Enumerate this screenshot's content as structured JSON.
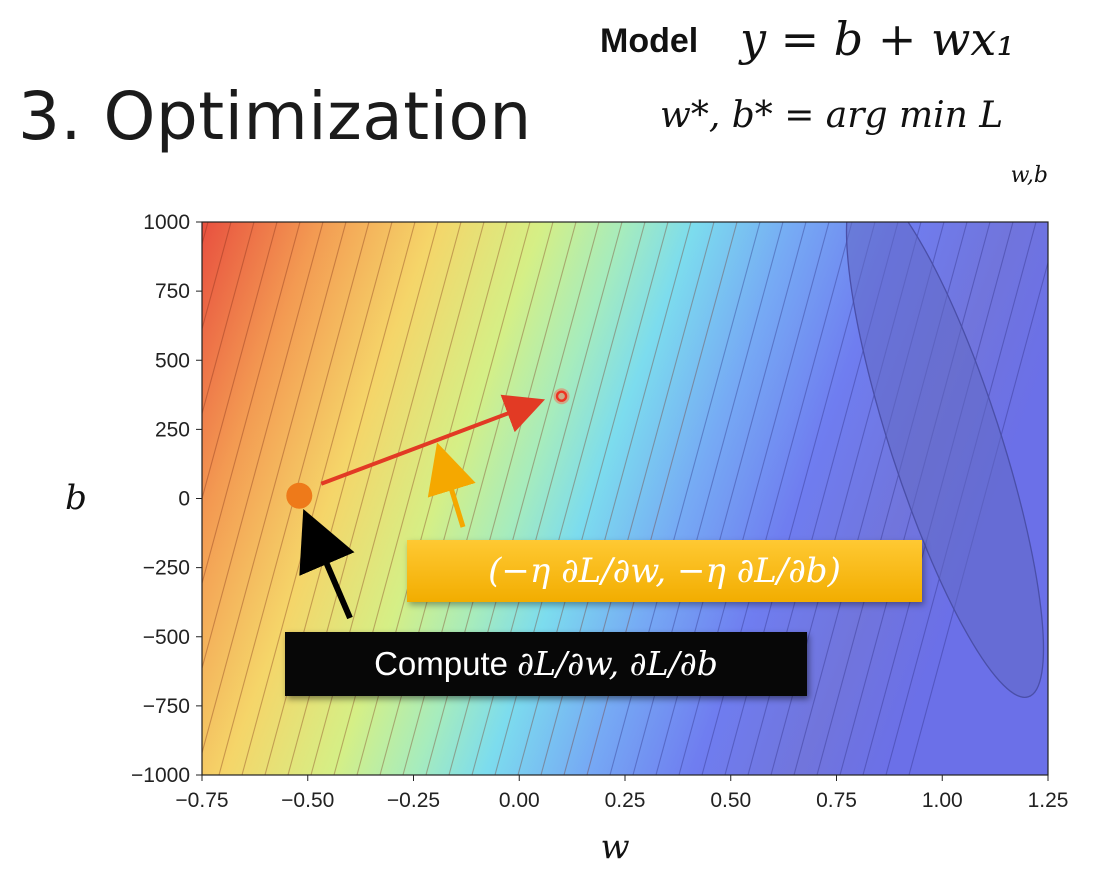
{
  "title": "3. Optimization",
  "model": {
    "label": "Model",
    "equation": "y = b + wx₁",
    "objective": "w*, b* = arg min L",
    "objective_subscript": "w,b"
  },
  "annotations": {
    "compute_prefix": "Compute",
    "compute_math": "∂L/∂w, ∂L/∂b",
    "update_step": "(−η ∂L/∂w, −η ∂L/∂b)"
  },
  "colors": {
    "current_point": "#ee7a1a",
    "next_point": "#ee3322",
    "step_arrow": "#e23a24",
    "gradient_arrow": "#f5a800",
    "pointer_arrow": "#000000"
  },
  "chart_data": {
    "type": "contour",
    "xlabel": "w",
    "ylabel": "b",
    "xlim": [
      -0.75,
      1.25
    ],
    "ylim": [
      -1000,
      1000
    ],
    "xticks": [
      "−0.75",
      "−0.50",
      "−0.25",
      "0.00",
      "0.25",
      "0.50",
      "0.75",
      "1.00",
      "1.25"
    ],
    "yticks": [
      "1000",
      "750",
      "500",
      "250",
      "0",
      "−250",
      "−500",
      "−750",
      "−1000"
    ],
    "colormap": "rainbow (red = high loss, blue = low loss)",
    "points": [
      {
        "name": "current",
        "w": -0.52,
        "b": 10
      },
      {
        "name": "next",
        "w": 0.1,
        "b": 370
      }
    ],
    "minimum_region": {
      "w": 1.02,
      "b": 200
    }
  }
}
